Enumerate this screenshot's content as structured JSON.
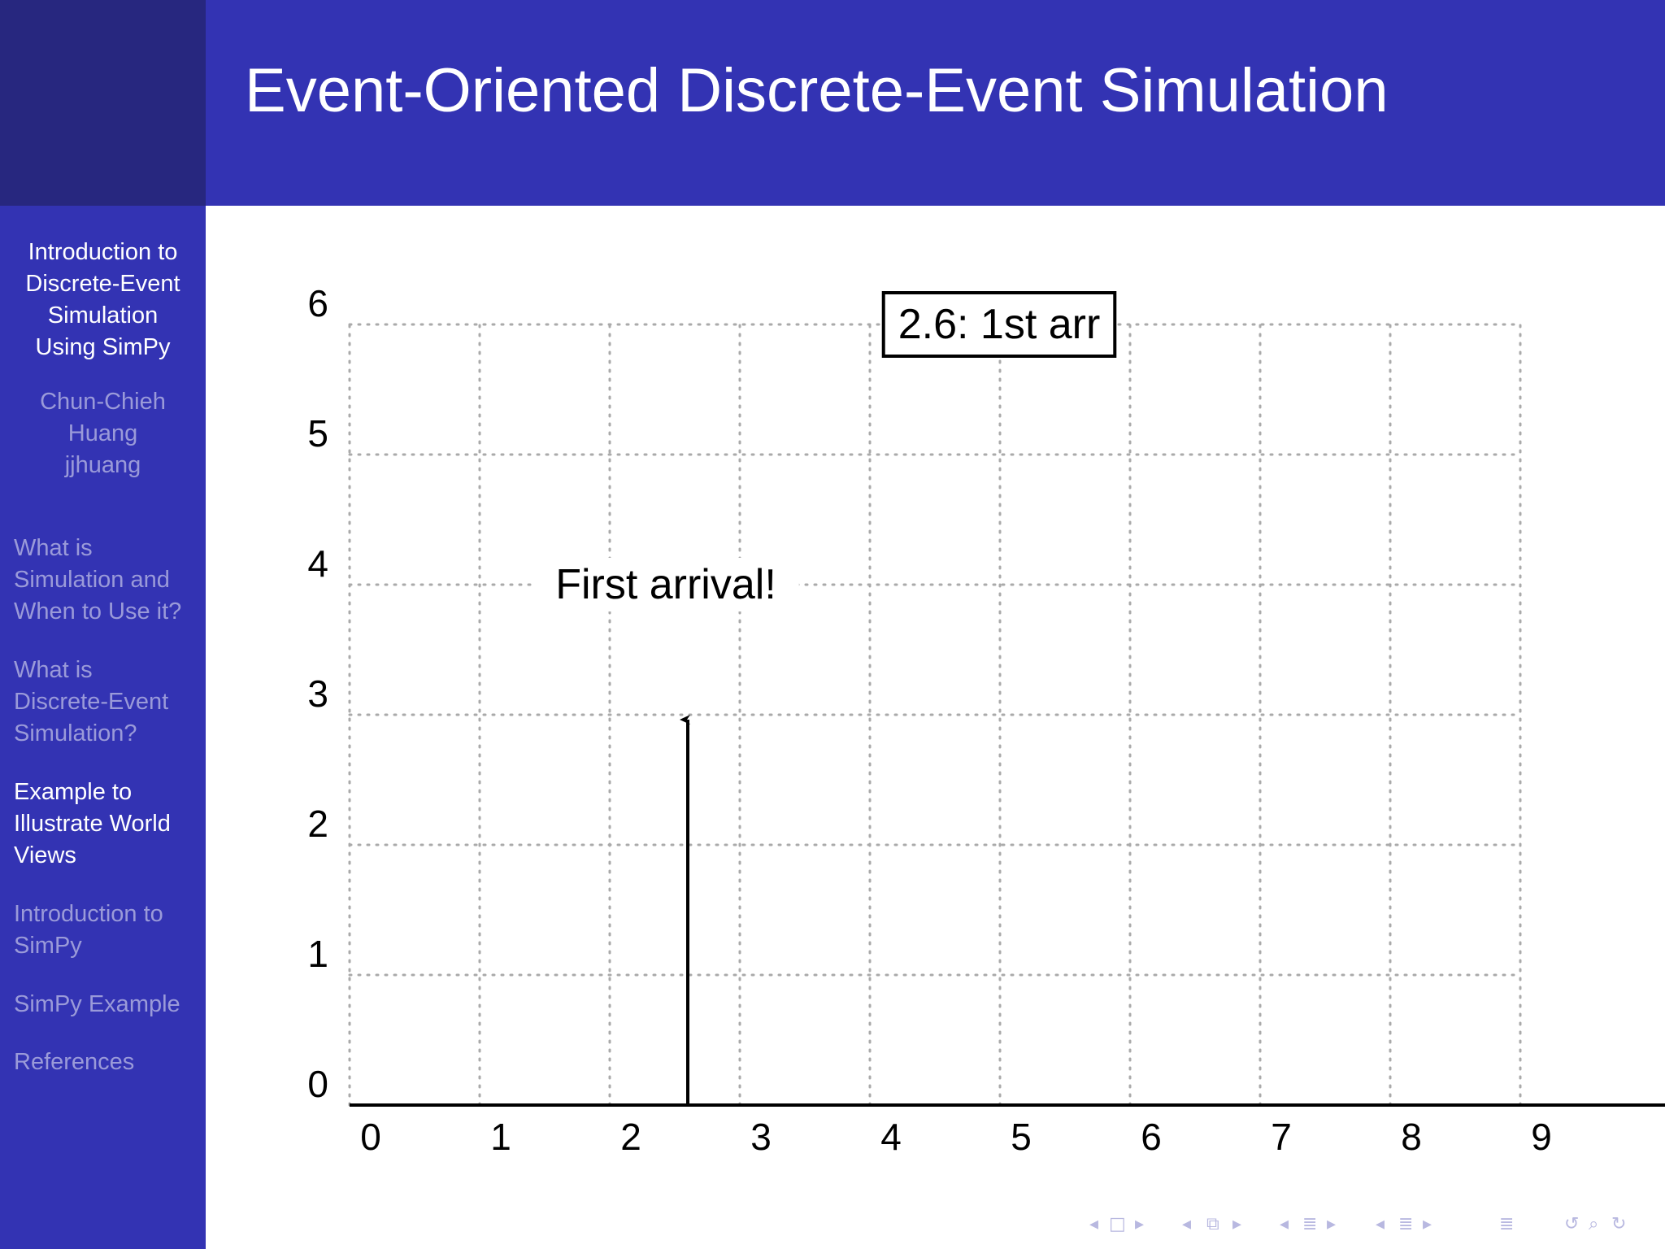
{
  "header": {
    "title": "Event-Oriented Discrete-Event Simulation"
  },
  "sidebar": {
    "presentation_title": [
      "Introduction to",
      "Discrete-Event",
      "Simulation",
      "Using SimPy"
    ],
    "author": [
      "Chun-Chieh",
      "Huang",
      "jjhuang"
    ],
    "sections": [
      {
        "lines": [
          "What is",
          "Simulation and",
          "When to Use it?"
        ],
        "active": false
      },
      {
        "lines": [
          "What is",
          "Discrete-Event",
          "Simulation?"
        ],
        "active": false
      },
      {
        "lines": [
          "Example to",
          "Illustrate World",
          "Views"
        ],
        "active": true
      },
      {
        "lines": [
          "Introduction to",
          "SimPy"
        ],
        "active": false
      },
      {
        "lines": [
          "SimPy Example"
        ],
        "active": false
      },
      {
        "lines": [
          "References"
        ],
        "active": false
      }
    ]
  },
  "chart_data": {
    "type": "line",
    "x_ticks": [
      "0",
      "1",
      "2",
      "3",
      "4",
      "5",
      "6",
      "7",
      "8",
      "9"
    ],
    "y_ticks": [
      "0",
      "1",
      "2",
      "3",
      "4",
      "5",
      "6"
    ],
    "xlim": [
      0,
      10
    ],
    "ylim": [
      0,
      6
    ],
    "grid": true,
    "grid_style": "dotted",
    "arrow": {
      "x": 2.6,
      "y_from": 0,
      "y_to": 3
    },
    "annotation": {
      "text": "First arrival!",
      "x": 2.4,
      "y": 4
    },
    "clock_box": {
      "text": "2.6: 1st arr",
      "x": 5,
      "y": 6
    }
  },
  "colors": {
    "header_bg": "#3333b3",
    "sidebar_top_bg": "#27277f",
    "sidebar_bg": "#3333b3",
    "sidebar_inactive_text": "#9a9ad9",
    "sidebar_active_text": "#ffffff",
    "grid": "#aaaaaa",
    "axis": "#000000"
  },
  "navigation": {
    "icons": [
      "prev-arrow-icon",
      "frame-icon",
      "next-arrow-icon",
      "prev-arrow-icon",
      "subsection-icon",
      "next-arrow-icon",
      "prev-arrow-icon",
      "section-icon",
      "next-arrow-icon",
      "prev-arrow-icon",
      "subsection-list-icon",
      "next-arrow-icon",
      "appendix-icon",
      "back-icon",
      "search-icon",
      "forward-icon"
    ]
  }
}
